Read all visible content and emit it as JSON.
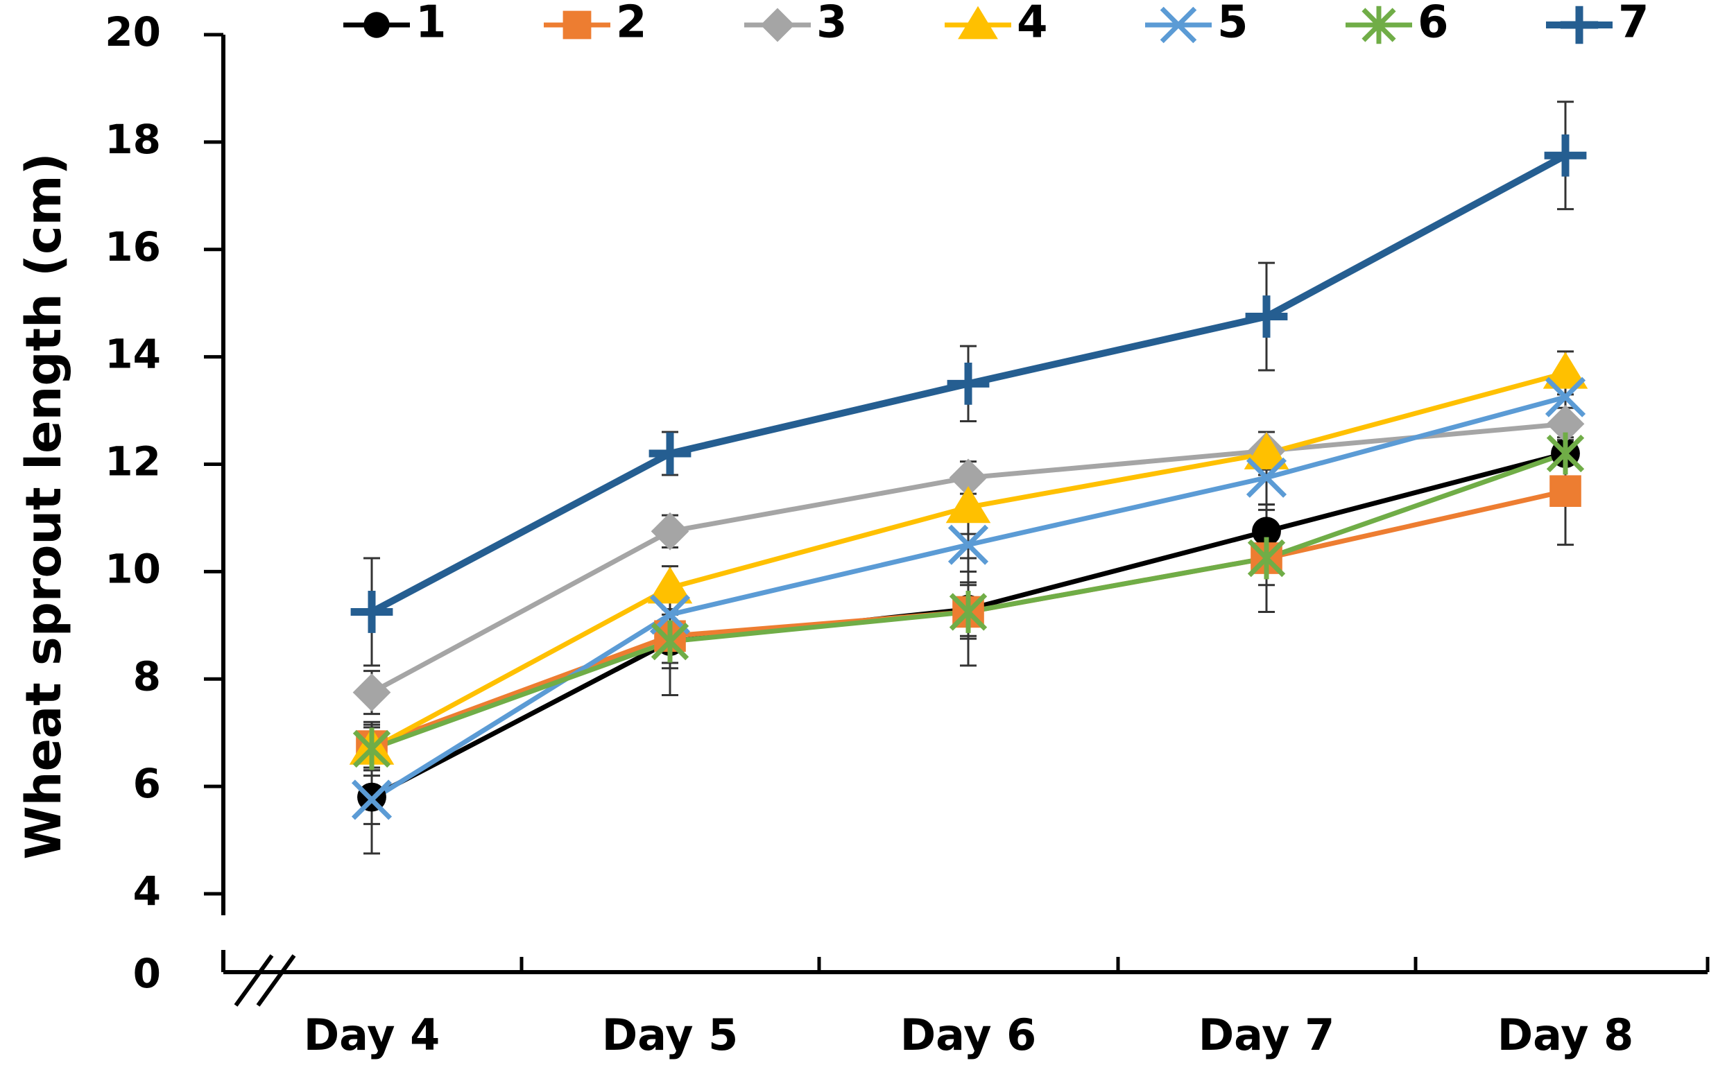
{
  "chart_data": {
    "type": "line",
    "title": "",
    "xlabel": "",
    "ylabel": "Wheat sprout length (cm)",
    "categories": [
      "Day 4",
      "Day 5",
      "Day 6",
      "Day 7",
      "Day 8"
    ],
    "ylim": [
      4,
      20
    ],
    "yticks": [
      4,
      6,
      8,
      10,
      12,
      14,
      16,
      18,
      20
    ],
    "axis_break_label": "0",
    "legend_position": "top",
    "grid": false,
    "series": [
      {
        "name": "1",
        "color": "#000000",
        "marker": "circle",
        "values": [
          5.8,
          8.7,
          9.3,
          10.75,
          12.2
        ],
        "errors": [
          0.5,
          0.5,
          0.5,
          0.5,
          0.5
        ]
      },
      {
        "name": "2",
        "color": "#ED7D31",
        "marker": "square",
        "values": [
          6.75,
          8.8,
          9.25,
          10.25,
          11.5
        ],
        "errors": [
          0.4,
          0.5,
          0.5,
          0.5,
          1.0
        ]
      },
      {
        "name": "3",
        "color": "#A5A5A5",
        "marker": "diamond",
        "values": [
          7.75,
          10.75,
          11.75,
          12.25,
          12.75
        ],
        "errors": [
          0.4,
          0.3,
          0.3,
          0.35,
          0.3
        ]
      },
      {
        "name": "4",
        "color": "#FFC000",
        "marker": "triangle",
        "values": [
          6.7,
          9.7,
          11.2,
          12.2,
          13.7
        ],
        "errors": [
          0.4,
          0.4,
          0.5,
          0.4,
          0.4
        ]
      },
      {
        "name": "5",
        "color": "#5B9BD5",
        "marker": "x",
        "values": [
          5.75,
          9.2,
          10.5,
          11.75,
          13.25
        ],
        "errors": [
          1.0,
          0.5,
          0.5,
          0.6,
          0.5
        ]
      },
      {
        "name": "6",
        "color": "#70AD47",
        "marker": "asterisk",
        "values": [
          6.7,
          8.7,
          9.25,
          10.25,
          12.2
        ],
        "errors": [
          0.5,
          1.0,
          1.0,
          1.0,
          0.5
        ]
      },
      {
        "name": "7",
        "color": "#255E91",
        "marker": "plus",
        "values": [
          9.25,
          12.2,
          13.5,
          14.75,
          17.75
        ],
        "errors": [
          1.0,
          0.4,
          0.7,
          1.0,
          1.0
        ]
      }
    ]
  }
}
